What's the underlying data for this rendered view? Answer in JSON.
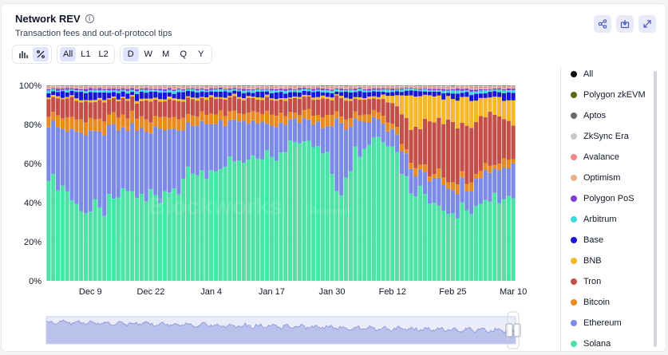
{
  "header": {
    "title": "Network REV",
    "info_icon_glyph": "i",
    "subtitle": "Transaction fees and out-of-protocol tips"
  },
  "toolbar": {
    "view_toggles": [
      {
        "name": "bar-chart-icon",
        "active": false
      },
      {
        "name": "percent-icon",
        "active": true
      }
    ],
    "layers": [
      {
        "label": "All",
        "active": true
      },
      {
        "label": "L1",
        "active": false
      },
      {
        "label": "L2",
        "active": false
      }
    ],
    "intervals": [
      {
        "label": "D",
        "active": true
      },
      {
        "label": "W",
        "active": false
      },
      {
        "label": "M",
        "active": false
      },
      {
        "label": "Q",
        "active": false
      },
      {
        "label": "Y",
        "active": false
      }
    ]
  },
  "actions": [
    {
      "name": "share-icon"
    },
    {
      "name": "download-icon"
    },
    {
      "name": "expand-icon"
    }
  ],
  "legend": [
    {
      "label": "All",
      "color": "#111111"
    },
    {
      "label": "Polygon zkEVM",
      "color": "#556b12"
    },
    {
      "label": "Aptos",
      "color": "#6b6b6b"
    },
    {
      "label": "ZkSync Era",
      "color": "#c8c8c8"
    },
    {
      "label": "Avalance",
      "color": "#f08a8c"
    },
    {
      "label": "Optimism",
      "color": "#e8b08a"
    },
    {
      "label": "Polygon PoS",
      "color": "#7e3fd9"
    },
    {
      "label": "Arbitrum",
      "color": "#3fd7df"
    },
    {
      "label": "Base",
      "color": "#1b16d6"
    },
    {
      "label": "BNB",
      "color": "#f5b82a"
    },
    {
      "label": "Tron",
      "color": "#c44f48"
    },
    {
      "label": "Bitcoin",
      "color": "#e88a1f"
    },
    {
      "label": "Ethereum",
      "color": "#7a8ae6"
    },
    {
      "label": "Solana",
      "color": "#4de3a6"
    }
  ],
  "watermark": {
    "main": "Blockworks",
    "sub": "Research"
  },
  "chart_data": {
    "type": "bar",
    "stacked": true,
    "normalized": true,
    "title": "Network REV",
    "xlabel": "",
    "ylabel": "",
    "ylim": [
      0,
      100
    ],
    "yticks": [
      "0%",
      "20%",
      "40%",
      "60%",
      "80%",
      "100%"
    ],
    "xticks": [
      "Dec 9",
      "Dec 22",
      "Jan 4",
      "Jan 17",
      "Jan 30",
      "Feb 12",
      "Feb 25",
      "Mar 10"
    ],
    "xtick_day_index": [
      9,
      22,
      35,
      48,
      61,
      74,
      87,
      100
    ],
    "first_day": "Nov 30",
    "last_day": "Mar 10",
    "days": 101,
    "series_order_bottom_to_top": [
      "Solana",
      "Ethereum",
      "Bitcoin",
      "Tron",
      "BNB",
      "Base",
      "Arbitrum",
      "Polygon PoS",
      "Optimism",
      "Avalance",
      "ZkSync Era",
      "Aptos",
      "Polygon zkEVM"
    ],
    "series": [
      {
        "name": "Solana",
        "anchors": [
          [
            0,
            57
          ],
          [
            3,
            50
          ],
          [
            6,
            38
          ],
          [
            9,
            33
          ],
          [
            12,
            36
          ],
          [
            15,
            42
          ],
          [
            18,
            47
          ],
          [
            21,
            38
          ],
          [
            24,
            44
          ],
          [
            27,
            48
          ],
          [
            30,
            52
          ],
          [
            33,
            60
          ],
          [
            36,
            55
          ],
          [
            39,
            62
          ],
          [
            42,
            58
          ],
          [
            45,
            63
          ],
          [
            48,
            67
          ],
          [
            51,
            70
          ],
          [
            54,
            72
          ],
          [
            57,
            75
          ],
          [
            60,
            69
          ],
          [
            62,
            45
          ],
          [
            64,
            55
          ],
          [
            66,
            70
          ],
          [
            70,
            76
          ],
          [
            74,
            75
          ],
          [
            76,
            58
          ],
          [
            78,
            52
          ],
          [
            80,
            45
          ],
          [
            82,
            42
          ],
          [
            84,
            40
          ],
          [
            86,
            32
          ],
          [
            88,
            28
          ],
          [
            90,
            30
          ],
          [
            92,
            34
          ],
          [
            94,
            30
          ],
          [
            96,
            38
          ],
          [
            98,
            42
          ],
          [
            100,
            40
          ]
        ]
      },
      {
        "name": "Ethereum",
        "anchors": [
          [
            0,
            28
          ],
          [
            5,
            33
          ],
          [
            10,
            40
          ],
          [
            15,
            35
          ],
          [
            20,
            30
          ],
          [
            25,
            32
          ],
          [
            30,
            25
          ],
          [
            35,
            28
          ],
          [
            40,
            20
          ],
          [
            45,
            18
          ],
          [
            50,
            13
          ],
          [
            55,
            12
          ],
          [
            60,
            12
          ],
          [
            62,
            35
          ],
          [
            65,
            20
          ],
          [
            70,
            10
          ],
          [
            74,
            8
          ],
          [
            76,
            12
          ],
          [
            80,
            10
          ],
          [
            85,
            12
          ],
          [
            90,
            10
          ],
          [
            95,
            12
          ],
          [
            100,
            15
          ]
        ]
      },
      {
        "name": "Bitcoin",
        "anchors": [
          [
            0,
            6
          ],
          [
            20,
            6
          ],
          [
            40,
            5
          ],
          [
            60,
            4
          ],
          [
            74,
            3
          ],
          [
            80,
            3
          ],
          [
            100,
            3
          ]
        ]
      },
      {
        "name": "Tron",
        "anchors": [
          [
            0,
            9
          ],
          [
            10,
            9
          ],
          [
            20,
            9
          ],
          [
            30,
            8
          ],
          [
            40,
            8
          ],
          [
            50,
            7
          ],
          [
            60,
            8
          ],
          [
            70,
            7
          ],
          [
            74,
            9
          ],
          [
            76,
            14
          ],
          [
            80,
            22
          ],
          [
            86,
            26
          ],
          [
            90,
            24
          ],
          [
            95,
            22
          ],
          [
            100,
            18
          ]
        ]
      },
      {
        "name": "BNB",
        "anchors": [
          [
            0,
            1
          ],
          [
            40,
            1
          ],
          [
            70,
            1
          ],
          [
            74,
            3
          ],
          [
            76,
            10
          ],
          [
            78,
            18
          ],
          [
            80,
            15
          ],
          [
            86,
            10
          ],
          [
            90,
            12
          ],
          [
            95,
            8
          ],
          [
            100,
            10
          ]
        ]
      },
      {
        "name": "Base",
        "anchors": [
          [
            0,
            3
          ],
          [
            30,
            2.5
          ],
          [
            60,
            2.5
          ],
          [
            80,
            2
          ],
          [
            100,
            3
          ]
        ]
      },
      {
        "name": "Arbitrum",
        "anchors": [
          [
            0,
            1
          ],
          [
            100,
            1
          ]
        ]
      },
      {
        "name": "Polygon PoS",
        "anchors": [
          [
            0,
            0.8
          ],
          [
            100,
            0.6
          ]
        ]
      },
      {
        "name": "Optimism",
        "anchors": [
          [
            0,
            0.5
          ],
          [
            100,
            0.5
          ]
        ]
      },
      {
        "name": "Avalance",
        "anchors": [
          [
            0,
            0.5
          ],
          [
            100,
            0.5
          ]
        ]
      },
      {
        "name": "ZkSync Era",
        "anchors": [
          [
            0,
            0.3
          ],
          [
            100,
            0.3
          ]
        ]
      },
      {
        "name": "Aptos",
        "anchors": [
          [
            0,
            0.2
          ],
          [
            100,
            0.2
          ]
        ]
      },
      {
        "name": "Polygon zkEVM",
        "anchors": [
          [
            0,
            0.1
          ],
          [
            100,
            0.1
          ]
        ]
      }
    ]
  }
}
